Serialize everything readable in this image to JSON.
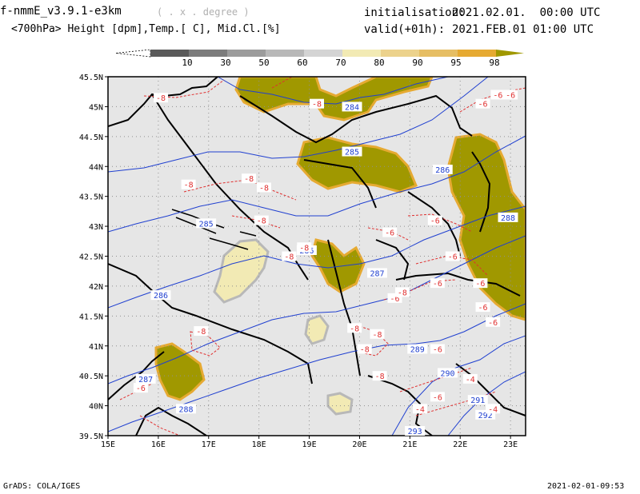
{
  "header": {
    "model": "f-nmmE_v3.9.1-e3km",
    "units": "( . x . degree )",
    "fields": "<700hPa> Height [dpm],Temp.[ C], Mid.Cl.[%]",
    "init_label": "initialisation:",
    "init_value": "2021.02.01.  00:00 UTC",
    "valid_label": "valid(+01h):",
    "valid_value": "2021.FEB.01 01:00 UTC"
  },
  "colorbar": {
    "labels": [
      "10",
      "30",
      "50",
      "60",
      "70",
      "80",
      "90",
      "95",
      "98"
    ],
    "colors": [
      "#5a5a5a",
      "#7c7c7c",
      "#9c9c9c",
      "#b8b8b8",
      "#d4d4d4",
      "#f2eab4",
      "#ecd28c",
      "#e6be64",
      "#e6aa32",
      "#a09800"
    ]
  },
  "map": {
    "lat_labels": [
      "45.5N",
      "45N",
      "44.5N",
      "44N",
      "43.5N",
      "43N",
      "42.5N",
      "42N",
      "41.5N",
      "41N",
      "40.5N",
      "40N",
      "39.5N"
    ],
    "lon_labels": [
      "15E",
      "16E",
      "17E",
      "18E",
      "19E",
      "20E",
      "21E",
      "22E",
      "23E"
    ],
    "lon_range": [
      15,
      23.3
    ],
    "lat_range": [
      39.5,
      45.5
    ],
    "height_labels": [
      {
        "text": "284",
        "lon": 19.85,
        "lat": 45.0
      },
      {
        "text": "285",
        "lon": 19.85,
        "lat": 44.25
      },
      {
        "text": "285",
        "lon": 16.95,
        "lat": 43.05
      },
      {
        "text": "286",
        "lon": 18.95,
        "lat": 42.6
      },
      {
        "text": "286",
        "lon": 21.65,
        "lat": 43.95
      },
      {
        "text": "286",
        "lon": 16.05,
        "lat": 41.85
      },
      {
        "text": "287",
        "lon": 20.35,
        "lat": 42.22
      },
      {
        "text": "287",
        "lon": 15.75,
        "lat": 40.45
      },
      {
        "text": "288",
        "lon": 22.95,
        "lat": 43.15
      },
      {
        "text": "288",
        "lon": 16.55,
        "lat": 39.95
      },
      {
        "text": "289",
        "lon": 21.15,
        "lat": 40.95
      },
      {
        "text": "290",
        "lon": 21.75,
        "lat": 40.55
      },
      {
        "text": "291",
        "lon": 22.35,
        "lat": 40.1
      },
      {
        "text": "292",
        "lon": 22.5,
        "lat": 39.85
      },
      {
        "text": "293",
        "lon": 21.1,
        "lat": 39.58
      }
    ],
    "temp_labels": [
      {
        "text": "-8",
        "lon": 16.05,
        "lat": 45.15
      },
      {
        "text": "-8",
        "lon": 19.15,
        "lat": 45.05
      },
      {
        "text": "-6",
        "lon": 22.45,
        "lat": 45.05
      },
      {
        "text": "-6",
        "lon": 22.75,
        "lat": 45.2
      },
      {
        "text": "-6",
        "lon": 23.0,
        "lat": 45.2
      },
      {
        "text": "-8",
        "lon": 17.8,
        "lat": 43.8
      },
      {
        "text": "-8",
        "lon": 18.1,
        "lat": 43.65
      },
      {
        "text": "-8",
        "lon": 16.6,
        "lat": 43.7
      },
      {
        "text": "-8",
        "lon": 18.05,
        "lat": 43.1
      },
      {
        "text": "-8",
        "lon": 18.6,
        "lat": 42.5
      },
      {
        "text": "-8",
        "lon": 18.9,
        "lat": 42.65
      },
      {
        "text": "-6",
        "lon": 21.5,
        "lat": 43.1
      },
      {
        "text": "-6",
        "lon": 20.6,
        "lat": 42.9
      },
      {
        "text": "-6",
        "lon": 21.85,
        "lat": 42.5
      },
      {
        "text": "-6",
        "lon": 21.55,
        "lat": 42.05
      },
      {
        "text": "-6",
        "lon": 22.4,
        "lat": 42.05
      },
      {
        "text": "-6",
        "lon": 20.7,
        "lat": 41.8
      },
      {
        "text": "-8",
        "lon": 20.85,
        "lat": 41.9
      },
      {
        "text": "-6",
        "lon": 22.45,
        "lat": 41.65
      },
      {
        "text": "-6",
        "lon": 22.65,
        "lat": 41.4
      },
      {
        "text": "-8",
        "lon": 16.85,
        "lat": 41.25
      },
      {
        "text": "-8",
        "lon": 19.9,
        "lat": 41.3
      },
      {
        "text": "-8",
        "lon": 20.35,
        "lat": 41.2
      },
      {
        "text": "-8",
        "lon": 20.1,
        "lat": 40.95
      },
      {
        "text": "-6",
        "lon": 21.55,
        "lat": 40.95
      },
      {
        "text": "-8",
        "lon": 20.4,
        "lat": 40.5
      },
      {
        "text": "-6",
        "lon": 15.65,
        "lat": 40.3
      },
      {
        "text": "-4",
        "lon": 22.2,
        "lat": 40.45
      },
      {
        "text": "-6",
        "lon": 21.55,
        "lat": 40.15
      },
      {
        "text": "-4",
        "lon": 21.2,
        "lat": 39.95
      },
      {
        "text": "-4",
        "lon": 22.65,
        "lat": 39.95
      }
    ]
  },
  "footer": {
    "left": "GrADS: COLA/IGES",
    "right": "2021-02-01-09:53"
  }
}
